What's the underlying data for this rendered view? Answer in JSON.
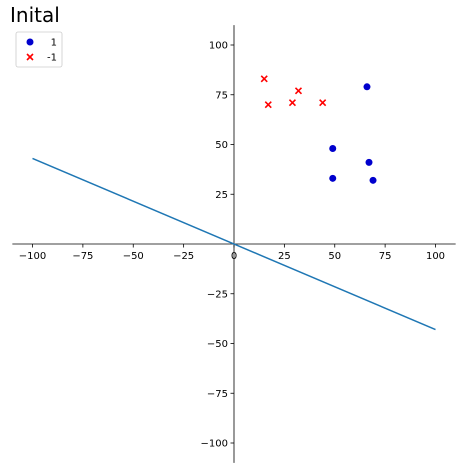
{
  "chart_data": {
    "type": "scatter",
    "title": "Inital",
    "xlabel": "",
    "ylabel": "",
    "xlim": [
      -110,
      110
    ],
    "ylim": [
      -110,
      110
    ],
    "xticks": [
      -100,
      -75,
      -50,
      -25,
      0,
      25,
      50,
      75,
      100
    ],
    "yticks": [
      -100,
      -75,
      -50,
      -25,
      25,
      50,
      75,
      100
    ],
    "xtick_labels": [
      "−100",
      "−75",
      "−50",
      "−25",
      "0",
      "25",
      "50",
      "75",
      "100"
    ],
    "ytick_labels": [
      "−100",
      "−75",
      "−50",
      "−25",
      "25",
      "50",
      "75",
      "100"
    ],
    "grid": false,
    "legend_position": "top-left",
    "series": [
      {
        "name": "1",
        "marker": "circle",
        "color": "#0000cd",
        "points": [
          [
            66,
            79
          ],
          [
            49,
            48
          ],
          [
            67,
            41
          ],
          [
            49,
            33
          ],
          [
            69,
            32
          ]
        ]
      },
      {
        "name": "-1",
        "marker": "x",
        "color": "#ff0000",
        "points": [
          [
            15,
            83
          ],
          [
            32,
            77
          ],
          [
            17,
            70
          ],
          [
            29,
            71
          ],
          [
            44,
            71
          ]
        ]
      }
    ],
    "lines": [
      {
        "color": "#1f77b4",
        "points": [
          [
            -100,
            43
          ],
          [
            100,
            -43
          ]
        ]
      }
    ]
  }
}
